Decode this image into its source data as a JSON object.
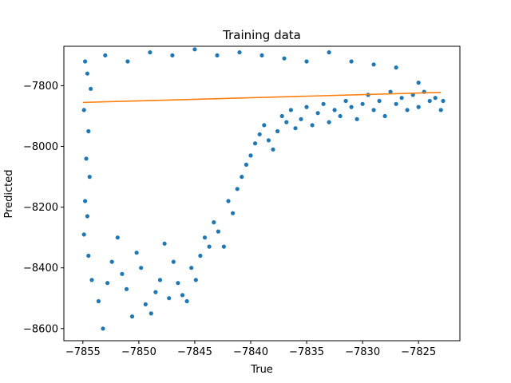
{
  "chart_data": {
    "type": "scatter",
    "title": "Training data",
    "xlabel": "True",
    "ylabel": "Predicted",
    "xlim": [
      -7856.7,
      -7821.3
    ],
    "ylim": [
      -8640,
      -7670
    ],
    "xticks": [
      -7855,
      -7850,
      -7845,
      -7840,
      -7835,
      -7830,
      -7825
    ],
    "xtick_labels": [
      "−7855",
      "−7850",
      "−7845",
      "−7840",
      "−7835",
      "−7830",
      "−7825"
    ],
    "yticks": [
      -8600,
      -8400,
      -8200,
      -8000,
      -7800
    ],
    "ytick_labels": [
      "−8600",
      "−8400",
      "−8200",
      "−8000",
      "−7800"
    ],
    "grid": false,
    "series": [
      {
        "type": "scatter",
        "color": "#1f77b4",
        "points": [
          [
            -7854.8,
            -7720
          ],
          [
            -7854.6,
            -7760
          ],
          [
            -7854.3,
            -7810
          ],
          [
            -7854.9,
            -7880
          ],
          [
            -7854.5,
            -7950
          ],
          [
            -7854.7,
            -8040
          ],
          [
            -7854.4,
            -8100
          ],
          [
            -7854.8,
            -8180
          ],
          [
            -7854.6,
            -8230
          ],
          [
            -7854.9,
            -8290
          ],
          [
            -7854.5,
            -8360
          ],
          [
            -7854.2,
            -8440
          ],
          [
            -7853.6,
            -8510
          ],
          [
            -7853.2,
            -8600
          ],
          [
            -7852.8,
            -8450
          ],
          [
            -7852.4,
            -8380
          ],
          [
            -7851.9,
            -8300
          ],
          [
            -7851.5,
            -8420
          ],
          [
            -7851.1,
            -8470
          ],
          [
            -7850.6,
            -8560
          ],
          [
            -7850.2,
            -8350
          ],
          [
            -7849.8,
            -8400
          ],
          [
            -7849.4,
            -8520
          ],
          [
            -7848.9,
            -8550
          ],
          [
            -7848.5,
            -8480
          ],
          [
            -7848.1,
            -8440
          ],
          [
            -7847.7,
            -8320
          ],
          [
            -7847.3,
            -8500
          ],
          [
            -7846.9,
            -8380
          ],
          [
            -7846.5,
            -8450
          ],
          [
            -7846.1,
            -8490
          ],
          [
            -7845.7,
            -8510
          ],
          [
            -7845.3,
            -8400
          ],
          [
            -7844.9,
            -8440
          ],
          [
            -7844.5,
            -8360
          ],
          [
            -7844.1,
            -8300
          ],
          [
            -7843.7,
            -8330
          ],
          [
            -7843.3,
            -8250
          ],
          [
            -7842.9,
            -8280
          ],
          [
            -7842.4,
            -8330
          ],
          [
            -7842.0,
            -8180
          ],
          [
            -7841.6,
            -8220
          ],
          [
            -7841.2,
            -8140
          ],
          [
            -7840.8,
            -8100
          ],
          [
            -7840.4,
            -8060
          ],
          [
            -7840.0,
            -8030
          ],
          [
            -7839.6,
            -7990
          ],
          [
            -7839.2,
            -7960
          ],
          [
            -7838.8,
            -7930
          ],
          [
            -7838.4,
            -7980
          ],
          [
            -7838.0,
            -8010
          ],
          [
            -7837.6,
            -7950
          ],
          [
            -7837.2,
            -7900
          ],
          [
            -7836.8,
            -7920
          ],
          [
            -7836.4,
            -7880
          ],
          [
            -7836.0,
            -7940
          ],
          [
            -7835.5,
            -7910
          ],
          [
            -7835.0,
            -7870
          ],
          [
            -7834.5,
            -7930
          ],
          [
            -7834.0,
            -7890
          ],
          [
            -7833.5,
            -7860
          ],
          [
            -7833.0,
            -7920
          ],
          [
            -7832.5,
            -7880
          ],
          [
            -7832.0,
            -7900
          ],
          [
            -7831.5,
            -7850
          ],
          [
            -7831.0,
            -7870
          ],
          [
            -7830.5,
            -7910
          ],
          [
            -7830.0,
            -7860
          ],
          [
            -7829.5,
            -7830
          ],
          [
            -7829.0,
            -7880
          ],
          [
            -7828.5,
            -7850
          ],
          [
            -7828.0,
            -7900
          ],
          [
            -7827.5,
            -7820
          ],
          [
            -7827.0,
            -7860
          ],
          [
            -7826.5,
            -7840
          ],
          [
            -7826.0,
            -7880
          ],
          [
            -7825.5,
            -7830
          ],
          [
            -7825.0,
            -7870
          ],
          [
            -7824.5,
            -7820
          ],
          [
            -7824.0,
            -7850
          ],
          [
            -7823.5,
            -7840
          ],
          [
            -7823.0,
            -7880
          ],
          [
            -7822.8,
            -7850
          ],
          [
            -7853.0,
            -7700
          ],
          [
            -7851.0,
            -7720
          ],
          [
            -7849.0,
            -7690
          ],
          [
            -7847.0,
            -7700
          ],
          [
            -7845.0,
            -7680
          ],
          [
            -7843.0,
            -7700
          ],
          [
            -7841.0,
            -7690
          ],
          [
            -7839.0,
            -7700
          ],
          [
            -7837.0,
            -7710
          ],
          [
            -7835.0,
            -7720
          ],
          [
            -7833.0,
            -7690
          ],
          [
            -7831.0,
            -7720
          ],
          [
            -7829.0,
            -7730
          ],
          [
            -7827.0,
            -7740
          ],
          [
            -7825.0,
            -7790
          ]
        ]
      },
      {
        "type": "line",
        "color": "#ff7f0e",
        "x": [
          -7855,
          -7823
        ],
        "y": [
          -7855,
          -7822
        ]
      }
    ]
  }
}
